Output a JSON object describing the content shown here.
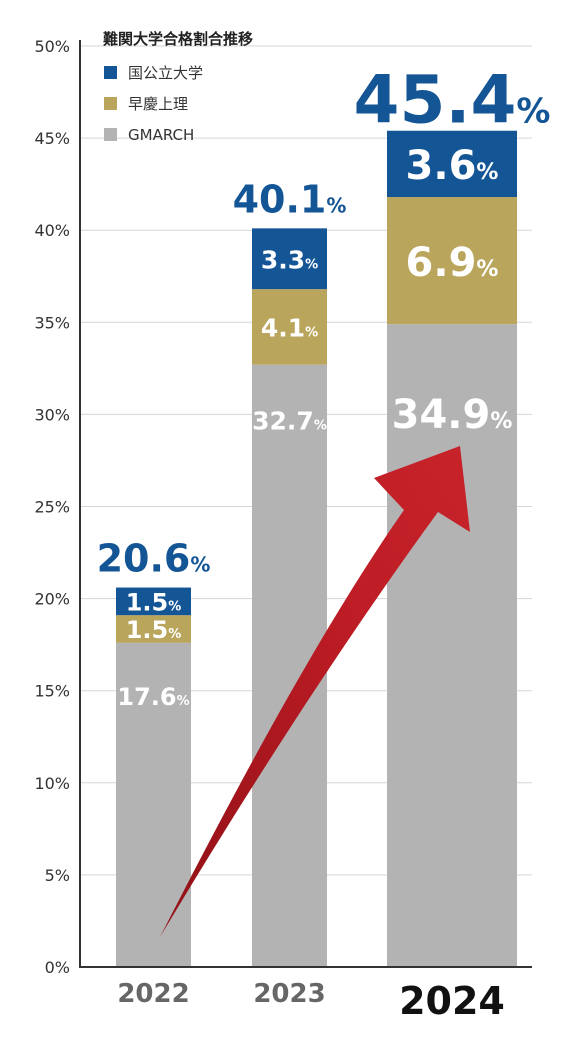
{
  "chart_data": {
    "type": "bar",
    "stacked": true,
    "title": "難関大学合格割合推移",
    "categories": [
      "2022",
      "2023",
      "2024"
    ],
    "highlight_category": "2024",
    "series": [
      {
        "name": "GMARCH",
        "color": "#b3b3b3",
        "values": [
          17.6,
          32.7,
          34.9
        ],
        "labels": [
          "17.6",
          "32.7",
          "34.9"
        ]
      },
      {
        "name": "早慶上理",
        "color": "#b9a55b",
        "values": [
          1.5,
          4.1,
          6.9
        ],
        "labels": [
          "1.5",
          "4.1",
          "6.9"
        ]
      },
      {
        "name": "国公立大学",
        "color": "#145596",
        "values": [
          1.5,
          3.3,
          3.6
        ],
        "labels": [
          "1.5",
          "3.3",
          "3.6"
        ]
      }
    ],
    "legend_order": [
      "国公立大学",
      "早慶上理",
      "GMARCH"
    ],
    "totals": [
      "20.6",
      "40.1",
      "45.4"
    ],
    "unit": "%",
    "yticks": [
      "0%",
      "5%",
      "10%",
      "15%",
      "20%",
      "25%",
      "30%",
      "35%",
      "40%",
      "45%",
      "50%"
    ],
    "ylim": [
      0,
      50
    ],
    "grid": true,
    "legend_position": "top-left",
    "total_color": "#145596",
    "arrow_color": "#bc1c24"
  }
}
